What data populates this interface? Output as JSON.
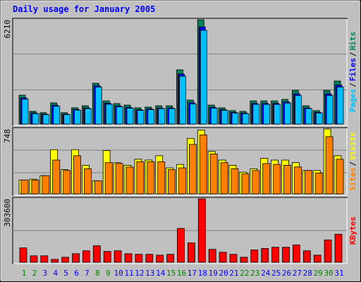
{
  "title": "Daily usage for January 2005",
  "categories": [
    "1",
    "2",
    "3",
    "4",
    "5",
    "6",
    "7",
    "8",
    "9",
    "10",
    "11",
    "12",
    "13",
    "14",
    "15",
    "16",
    "17",
    "18",
    "19",
    "20",
    "21",
    "22",
    "23",
    "24",
    "25",
    "26",
    "27",
    "28",
    "29",
    "30",
    "31"
  ],
  "highlight_categories": [
    "1",
    "2",
    "8",
    "9",
    "15",
    "16",
    "22",
    "23",
    "29",
    "30"
  ],
  "category_color": "#0000ff",
  "highlight_color": "#008000",
  "legend_separator": "/",
  "chart_data": [
    {
      "type": "bar",
      "ylim": [
        0,
        6210
      ],
      "yticks": [
        6210
      ],
      "series": [
        {
          "name": "Hits",
          "color": "#00805c",
          "values": [
            1720,
            760,
            680,
            1260,
            680,
            970,
            1090,
            2430,
            1380,
            1220,
            1130,
            970,
            1010,
            1090,
            1090,
            3230,
            1430,
            6210,
            1130,
            970,
            800,
            760,
            1380,
            1380,
            1380,
            1470,
            2010,
            1090,
            800,
            2010,
            2560
          ]
        },
        {
          "name": "Files",
          "color": "#0000ff",
          "values": [
            1560,
            660,
            590,
            1120,
            590,
            870,
            960,
            2280,
            1240,
            1080,
            1000,
            860,
            900,
            960,
            960,
            2980,
            1270,
            5780,
            1000,
            860,
            700,
            660,
            1230,
            1230,
            1230,
            1320,
            1800,
            960,
            700,
            1800,
            2320
          ]
        },
        {
          "name": "Pages",
          "color": "#00c0ff",
          "values": [
            1480,
            620,
            560,
            1060,
            560,
            830,
            920,
            2200,
            1180,
            1030,
            950,
            820,
            860,
            920,
            920,
            2850,
            1200,
            5580,
            950,
            820,
            660,
            620,
            1170,
            1170,
            1170,
            1250,
            1700,
            920,
            660,
            1700,
            2200
          ]
        }
      ]
    },
    {
      "type": "bar",
      "ylim": [
        0,
        748
      ],
      "yticks": [
        748
      ],
      "series": [
        {
          "name": "Visits",
          "color": "#ffff00",
          "values": [
            160,
            170,
            210,
            510,
            280,
            510,
            330,
            150,
            500,
            360,
            330,
            400,
            390,
            440,
            300,
            340,
            640,
            735,
            490,
            390,
            330,
            250,
            290,
            410,
            390,
            390,
            360,
            270,
            270,
            748,
            440
          ]
        },
        {
          "name": "Sites",
          "color": "#ff8000",
          "values": [
            160,
            160,
            210,
            390,
            270,
            440,
            290,
            150,
            360,
            350,
            310,
            370,
            370,
            370,
            280,
            300,
            570,
            680,
            460,
            360,
            290,
            230,
            270,
            350,
            340,
            330,
            310,
            270,
            240,
            660,
            400
          ]
        }
      ]
    },
    {
      "type": "bar",
      "ylim": [
        0,
        303600
      ],
      "yticks": [
        303600
      ],
      "series": [
        {
          "name": "KBytes",
          "color": "#ff0000",
          "values": [
            69000,
            31000,
            31000,
            14000,
            24000,
            41000,
            55000,
            79000,
            52000,
            55000,
            41000,
            38000,
            38000,
            34000,
            38000,
            162000,
            93000,
            303600,
            62000,
            48000,
            38000,
            24000,
            59000,
            66000,
            72000,
            72000,
            83000,
            55000,
            34000,
            107000,
            134000
          ]
        }
      ]
    }
  ]
}
